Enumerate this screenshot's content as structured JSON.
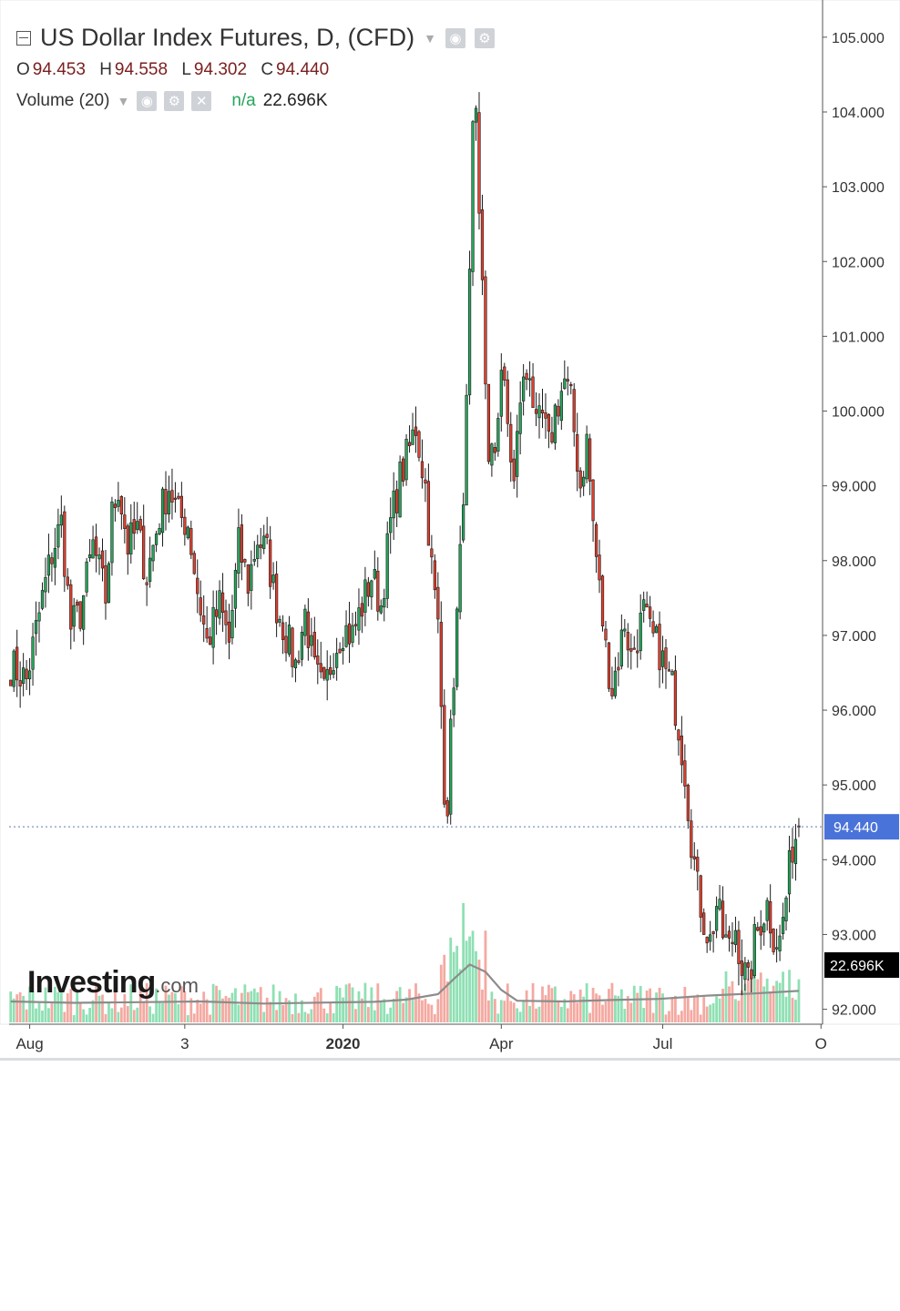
{
  "header": {
    "title": "US Dollar Index Futures, D, (CFD)",
    "ohlc": {
      "o_label": "O",
      "o": "94.453",
      "h_label": "H",
      "h": "94.558",
      "l_label": "L",
      "l": "94.302",
      "c_label": "C",
      "c": "94.440"
    },
    "volume_label": "Volume (20)",
    "volume_na": "n/a",
    "volume_value": "22.696K"
  },
  "logo": {
    "main": "Investing",
    "suffix": ".com"
  },
  "colors": {
    "up": "#26a65b",
    "down": "#e0402f",
    "up_volume": "#8fe0b4",
    "down_volume": "#f4a9a1",
    "price_tag": "#4a73d9",
    "volume_tag": "#000000",
    "ma_line": "#8c8c8c"
  },
  "icons": [
    "collapse-icon",
    "eye-icon",
    "gear-icon",
    "close-icon",
    "chevron-down-icon"
  ],
  "chart_data": {
    "type": "candlestick",
    "title": "US Dollar Index Futures, D, (CFD)",
    "ylim": [
      91.8,
      105.4
    ],
    "y_ticks": [
      "105.000",
      "104.000",
      "103.000",
      "102.000",
      "101.000",
      "100.000",
      "99.000",
      "98.000",
      "97.000",
      "96.000",
      "95.000",
      "94.000",
      "93.000",
      "92.000"
    ],
    "x_ticks": [
      {
        "label": "Aug",
        "index": 6
      },
      {
        "label": "3",
        "index": 55
      },
      {
        "label": "2020",
        "index": 105
      },
      {
        "label": "Apr",
        "index": 155
      },
      {
        "label": "Jul",
        "index": 206
      },
      {
        "label": "O",
        "index": 256
      }
    ],
    "last_price": "94.440",
    "last_volume": "22.696K",
    "close_path": [
      [
        0,
        96.6
      ],
      [
        5,
        96.4
      ],
      [
        10,
        97.5
      ],
      [
        13,
        98.1
      ],
      [
        16,
        98.5
      ],
      [
        19,
        97.1
      ],
      [
        22,
        97.3
      ],
      [
        26,
        98.2
      ],
      [
        30,
        97.5
      ],
      [
        32,
        98.6
      ],
      [
        34,
        99.0
      ],
      [
        37,
        98.2
      ],
      [
        40,
        98.4
      ],
      [
        43,
        97.8
      ],
      [
        47,
        98.6
      ],
      [
        50,
        99.0
      ],
      [
        53,
        98.6
      ],
      [
        56,
        98.5
      ],
      [
        59,
        97.6
      ],
      [
        62,
        96.9
      ],
      [
        66,
        97.4
      ],
      [
        69,
        96.9
      ],
      [
        72,
        98.2
      ],
      [
        75,
        97.7
      ],
      [
        78,
        98.3
      ],
      [
        81,
        98.1
      ],
      [
        84,
        97.4
      ],
      [
        87,
        97.0
      ],
      [
        90,
        96.6
      ],
      [
        93,
        97.3
      ],
      [
        96,
        96.5
      ],
      [
        99,
        96.2
      ],
      [
        102,
        96.8
      ],
      [
        105,
        97.1
      ],
      [
        108,
        97.0
      ],
      [
        111,
        97.4
      ],
      [
        114,
        97.8
      ],
      [
        117,
        97.4
      ],
      [
        120,
        98.5
      ],
      [
        123,
        99.1
      ],
      [
        126,
        99.5
      ],
      [
        128,
        99.8
      ],
      [
        131,
        99.0
      ],
      [
        133,
        97.9
      ],
      [
        135,
        97.1
      ],
      [
        137,
        95.0
      ],
      [
        138,
        94.8
      ],
      [
        140,
        96.5
      ],
      [
        142,
        98.0
      ],
      [
        144,
        100.0
      ],
      [
        145,
        101.7
      ],
      [
        146,
        103.6
      ],
      [
        147,
        103.8
      ],
      [
        148,
        102.5
      ],
      [
        149,
        101.8
      ],
      [
        150,
        100.5
      ],
      [
        151,
        99.2
      ],
      [
        153,
        99.5
      ],
      [
        155,
        100.6
      ],
      [
        157,
        99.8
      ],
      [
        159,
        99.0
      ],
      [
        161,
        100.2
      ],
      [
        164,
        100.6
      ],
      [
        166,
        99.7
      ],
      [
        168,
        99.9
      ],
      [
        170,
        99.5
      ],
      [
        172,
        100.0
      ],
      [
        175,
        100.4
      ],
      [
        177,
        100.1
      ],
      [
        180,
        99.0
      ],
      [
        182,
        99.6
      ],
      [
        184,
        98.5
      ],
      [
        186,
        97.6
      ],
      [
        188,
        96.8
      ],
      [
        190,
        96.3
      ],
      [
        192,
        96.7
      ],
      [
        194,
        97.2
      ],
      [
        196,
        96.7
      ],
      [
        198,
        97.0
      ],
      [
        200,
        97.3
      ],
      [
        202,
        97.0
      ],
      [
        205,
        96.8
      ],
      [
        207,
        96.5
      ],
      [
        209,
        96.3
      ],
      [
        211,
        95.8
      ],
      [
        213,
        95.2
      ],
      [
        215,
        94.3
      ],
      [
        217,
        93.6
      ],
      [
        219,
        93.2
      ],
      [
        221,
        92.9
      ],
      [
        223,
        93.4
      ],
      [
        225,
        93.0
      ],
      [
        227,
        92.8
      ],
      [
        229,
        93.1
      ],
      [
        231,
        92.6
      ],
      [
        233,
        92.3
      ],
      [
        235,
        92.9
      ],
      [
        237,
        93.2
      ],
      [
        239,
        93.4
      ],
      [
        241,
        93.0
      ],
      [
        243,
        92.9
      ],
      [
        245,
        93.5
      ],
      [
        247,
        94.2
      ],
      [
        249,
        94.44
      ]
    ],
    "volume_ma_path": [
      [
        0,
        5800
      ],
      [
        20,
        5400
      ],
      [
        40,
        5600
      ],
      [
        60,
        5800
      ],
      [
        80,
        5200
      ],
      [
        100,
        5500
      ],
      [
        115,
        5700
      ],
      [
        125,
        6300
      ],
      [
        135,
        7800
      ],
      [
        140,
        12000
      ],
      [
        145,
        16000
      ],
      [
        150,
        14000
      ],
      [
        155,
        9000
      ],
      [
        160,
        6000
      ],
      [
        175,
        5800
      ],
      [
        190,
        6200
      ],
      [
        205,
        6500
      ],
      [
        220,
        7400
      ],
      [
        235,
        8000
      ],
      [
        249,
        8700
      ]
    ],
    "volume_ylim": [
      0,
      36000
    ]
  }
}
